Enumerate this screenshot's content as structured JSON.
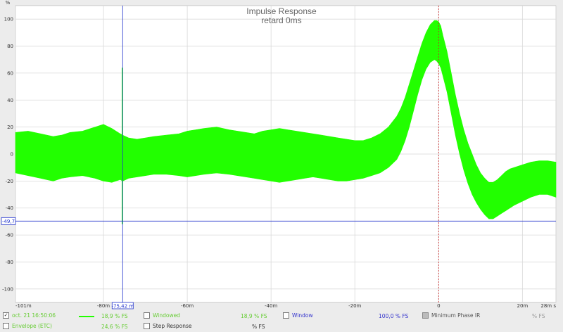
{
  "chart_data": {
    "type": "line",
    "title": "Impulse Response",
    "subtitle": "retard 0ms",
    "ylabel_unit": "%",
    "xlabel_unit": "ms",
    "xlim": [
      -101,
      28
    ],
    "ylim": [
      -110,
      110
    ],
    "x_ticks": [
      -101,
      -80,
      -60,
      -40,
      -20,
      0,
      20,
      28
    ],
    "x_tick_labels": [
      "-101m",
      "-80m",
      "-60m",
      "-40m",
      "-20m",
      "0",
      "20m",
      "28m s"
    ],
    "y_ticks": [
      100,
      80,
      60,
      40,
      20,
      0,
      -20,
      -40,
      -60,
      -80,
      -100
    ],
    "y_tick_labels": [
      "100",
      "80",
      "60",
      "40",
      "20",
      "0",
      "-20",
      "-40",
      "-60",
      "-80",
      "-100"
    ],
    "grid": true,
    "series": [
      {
        "name": "oct. 21 16:50:06",
        "color": "#22ff00",
        "envelope_x": [
          -101,
          -98,
          -95,
          -92,
          -90,
          -88,
          -85,
          -82,
          -80,
          -78,
          -76,
          -75.42,
          -74,
          -72,
          -70,
          -68,
          -65,
          -62,
          -60,
          -58,
          -56,
          -53,
          -50,
          -48,
          -46,
          -44,
          -42,
          -40,
          -38,
          -36,
          -34,
          -32,
          -30,
          -28,
          -26,
          -24,
          -22,
          -20,
          -18,
          -16,
          -14,
          -12,
          -10,
          -9,
          -8,
          -7,
          -6,
          -5,
          -4,
          -3,
          -2,
          -1,
          -0.5,
          0,
          0.5,
          1,
          2,
          3,
          4,
          5,
          6,
          7,
          8,
          9,
          10,
          11,
          12,
          13,
          14,
          15,
          16,
          17,
          18,
          20,
          22,
          24,
          26,
          28
        ],
        "upper": [
          16,
          17,
          15,
          13,
          14,
          16,
          17,
          20,
          22,
          19,
          15,
          14,
          12,
          11,
          12,
          13,
          14,
          15,
          17,
          18,
          19,
          20,
          18,
          17,
          16,
          15,
          17,
          18,
          19,
          18,
          17,
          16,
          15,
          14,
          13,
          12,
          11,
          10,
          10,
          12,
          15,
          20,
          28,
          34,
          42,
          52,
          62,
          72,
          82,
          90,
          96,
          99,
          99,
          98,
          95,
          88,
          76,
          60,
          44,
          30,
          18,
          8,
          0,
          -8,
          -14,
          -18,
          -21,
          -21,
          -19,
          -16,
          -13,
          -11,
          -10,
          -8,
          -6,
          -5,
          -5,
          -6
        ],
        "lower": [
          -14,
          -16,
          -18,
          -20,
          -18,
          -17,
          -16,
          -18,
          -20,
          -21,
          -19,
          -20,
          -18,
          -17,
          -16,
          -15,
          -15,
          -16,
          -17,
          -16,
          -15,
          -14,
          -15,
          -16,
          -17,
          -18,
          -19,
          -20,
          -21,
          -20,
          -19,
          -18,
          -17,
          -18,
          -19,
          -20,
          -20,
          -19,
          -18,
          -16,
          -14,
          -10,
          -4,
          2,
          10,
          20,
          32,
          44,
          55,
          63,
          68,
          70,
          69,
          67,
          64,
          58,
          46,
          30,
          14,
          0,
          -12,
          -22,
          -30,
          -36,
          -41,
          -45,
          -48,
          -48,
          -46,
          -44,
          -42,
          -40,
          -38,
          -35,
          -32,
          -30,
          -30,
          -32
        ],
        "spike": {
          "x": -75.42,
          "top": 64,
          "bottom": -52
        }
      }
    ],
    "cursor_x_label": "-75,42 m",
    "cursor_y_label": "-49,7",
    "cursor_x": -75.42,
    "cursor_y": -49.7,
    "reference_line_x": 0
  },
  "legend": {
    "items": [
      {
        "label": "oct. 21 16:50:06",
        "checked": "✓",
        "value": "18,9 % FS"
      },
      {
        "label": "Envelope (ETC)",
        "checked": "",
        "value": "24,6 % FS"
      },
      {
        "label": "Windowed",
        "checked": "",
        "value": "18,9 % FS"
      },
      {
        "label": "Step Response",
        "checked": "",
        "value": "% FS"
      },
      {
        "label": "Window",
        "checked": "",
        "value": "100,0 % FS"
      },
      {
        "label": "Minimum Phase IR",
        "checked": "",
        "value": "% FS"
      }
    ]
  },
  "colors": {
    "series": "#22ff00",
    "grid": "#d9d9d9",
    "cursor": "#2233cc",
    "reference": "#cc2222",
    "window_blue": "#3333cc",
    "windowed_green": "#66cc33"
  }
}
